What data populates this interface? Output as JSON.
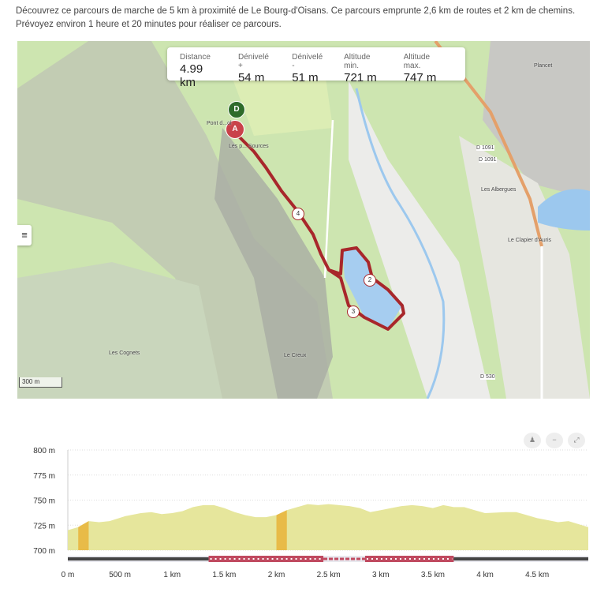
{
  "description": "Découvrez ce parcours de marche de 5 km à proximité de Le Bourg-d'Oisans. Ce parcours emprunte 2,6 km de routes et 2 km de chemins. Prévoyez environ 1 heure et 20 minutes pour réaliser ce parcours.",
  "stats": [
    {
      "label": "Distance",
      "value": "4.99 km"
    },
    {
      "label": "Dénivelé +",
      "value": "54 m"
    },
    {
      "label": "Dénivelé -",
      "value": "51 m"
    },
    {
      "label": "Altitude min.",
      "value": "721 m"
    },
    {
      "label": "Altitude max.",
      "value": "747 m"
    }
  ],
  "map": {
    "menu_icon": "hamburger-icon",
    "scale": "300 m",
    "start_marker": "D",
    "end_marker": "A",
    "waypoints": [
      "2",
      "3",
      "4"
    ],
    "places": [
      "Pont d...ol",
      "Les p... Sources",
      "Plancet",
      "Les Albergues",
      "Le Clapier d'Auris",
      "Les Cognets",
      "Le Creux",
      "D 1091",
      "D 1091",
      "D 530"
    ],
    "route_color": "#a8272b"
  },
  "chart_tools": [
    "person-icon",
    "minus-icon",
    "expand-icon"
  ],
  "chart_data": {
    "type": "area",
    "title": "",
    "xlabel": "",
    "ylabel": "",
    "ylim": [
      700,
      800
    ],
    "xlim": [
      0,
      4.99
    ],
    "yticks": [
      "700 m",
      "725 m",
      "750 m",
      "775 m",
      "800 m"
    ],
    "ytick_values": [
      700,
      725,
      750,
      775,
      800
    ],
    "xticks": [
      "0 m",
      "500 m",
      "1 km",
      "1.5 km",
      "2 km",
      "2.5 km",
      "3 km",
      "3.5 km",
      "4 km",
      "4.5 km"
    ],
    "xtick_values": [
      0,
      0.5,
      1,
      1.5,
      2,
      2.5,
      3,
      3.5,
      4,
      4.5
    ],
    "grid": true,
    "fill_color": "#e6e69c",
    "steep_color": "#e8bb48",
    "x": [
      0,
      0.1,
      0.2,
      0.3,
      0.4,
      0.55,
      0.7,
      0.8,
      0.9,
      1.0,
      1.1,
      1.2,
      1.3,
      1.4,
      1.5,
      1.6,
      1.7,
      1.8,
      1.9,
      2.0,
      2.1,
      2.2,
      2.3,
      2.4,
      2.5,
      2.6,
      2.7,
      2.8,
      2.9,
      3.0,
      3.1,
      3.2,
      3.3,
      3.4,
      3.5,
      3.6,
      3.7,
      3.8,
      3.9,
      4.0,
      4.2,
      4.3,
      4.4,
      4.5,
      4.6,
      4.7,
      4.8,
      4.99
    ],
    "y": [
      720,
      723,
      729,
      728,
      729,
      734,
      737,
      738,
      736,
      737,
      739,
      743,
      745,
      745,
      742,
      738,
      735,
      733,
      733,
      735,
      740,
      743,
      746,
      745,
      746,
      745,
      744,
      742,
      738,
      740,
      742,
      744,
      745,
      744,
      742,
      745,
      743,
      743,
      740,
      737,
      738,
      738,
      735,
      732,
      730,
      728,
      729,
      723
    ],
    "steep_segments": [
      [
        0.1,
        0.2
      ],
      [
        2.0,
        2.1
      ]
    ],
    "surface": [
      {
        "type": "road",
        "from": 0,
        "to": 1.35
      },
      {
        "type": "path",
        "from": 1.35,
        "to": 2.45
      },
      {
        "type": "unknown",
        "from": 2.45,
        "to": 2.85
      },
      {
        "type": "path",
        "from": 2.85,
        "to": 3.7
      },
      {
        "type": "road",
        "from": 3.7,
        "to": 4.99
      }
    ]
  }
}
